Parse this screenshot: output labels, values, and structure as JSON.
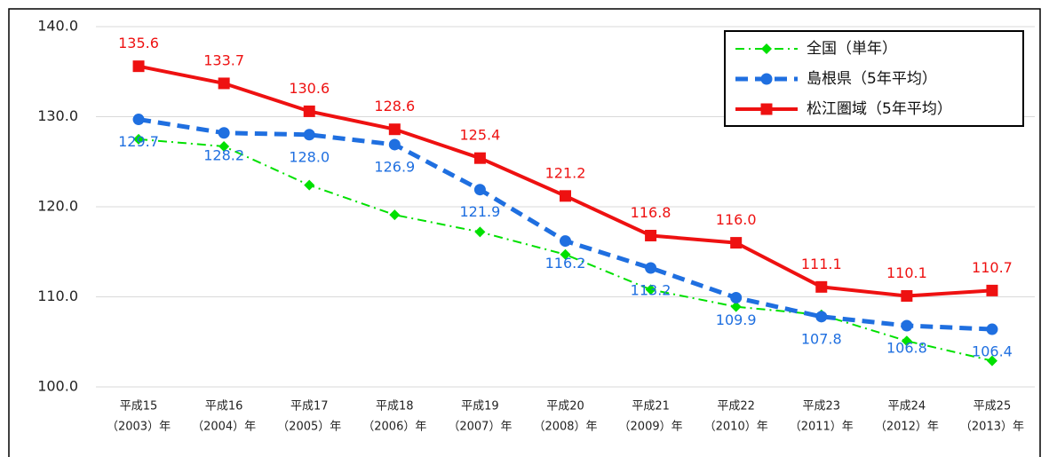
{
  "chart_data": {
    "type": "line",
    "categories": [
      [
        "平成15",
        "（2003）年"
      ],
      [
        "平成16",
        "（2004）年"
      ],
      [
        "平成17",
        "（2005）年"
      ],
      [
        "平成18",
        "（2006）年"
      ],
      [
        "平成19",
        "（2007）年"
      ],
      [
        "平成20",
        "（2008）年"
      ],
      [
        "平成21",
        "（2009）年"
      ],
      [
        "平成22",
        "（2010）年"
      ],
      [
        "平成23",
        "（2011）年"
      ],
      [
        "平成24",
        "（2012）年"
      ],
      [
        "平成25",
        "（2013）年"
      ]
    ],
    "series": [
      {
        "name": "全国（単年）",
        "color": "#00e000",
        "line_style": "dashdot",
        "marker": "diamond",
        "values": [
          127.5,
          126.7,
          122.4,
          119.1,
          117.2,
          114.7,
          110.8,
          108.9,
          108.0,
          105.1,
          102.9
        ]
      },
      {
        "name": "島根県（5年平均）",
        "color": "#1f6fe0",
        "line_style": "dashed",
        "marker": "circle",
        "values": [
          129.7,
          128.2,
          128.0,
          126.9,
          121.9,
          116.2,
          113.2,
          109.9,
          107.8,
          106.8,
          106.4
        ],
        "value_labels": [
          "129.7",
          "128.2",
          "128.0",
          "126.9",
          "121.9",
          "116.2",
          "113.2",
          "109.9",
          "107.8",
          "106.8",
          "106.4"
        ]
      },
      {
        "name": "松江圏域（5年平均）",
        "color": "#ee1111",
        "line_style": "solid",
        "marker": "square",
        "values": [
          135.6,
          133.7,
          130.6,
          128.6,
          125.4,
          121.2,
          116.8,
          116.0,
          111.1,
          110.1,
          110.7
        ],
        "value_labels": [
          "135.6",
          "133.7",
          "130.6",
          "128.6",
          "125.4",
          "121.2",
          "116.8",
          "116.0",
          "111.1",
          "110.1",
          "110.7"
        ]
      }
    ],
    "ylim": [
      100,
      140
    ],
    "yticks": [
      {
        "value": 100,
        "label": "100.0"
      },
      {
        "value": 110,
        "label": "110.0"
      },
      {
        "value": 120,
        "label": "120.0"
      },
      {
        "value": 130,
        "label": "130.0"
      },
      {
        "value": 140,
        "label": "140.0"
      }
    ],
    "grid": true,
    "legend": "top-right"
  }
}
